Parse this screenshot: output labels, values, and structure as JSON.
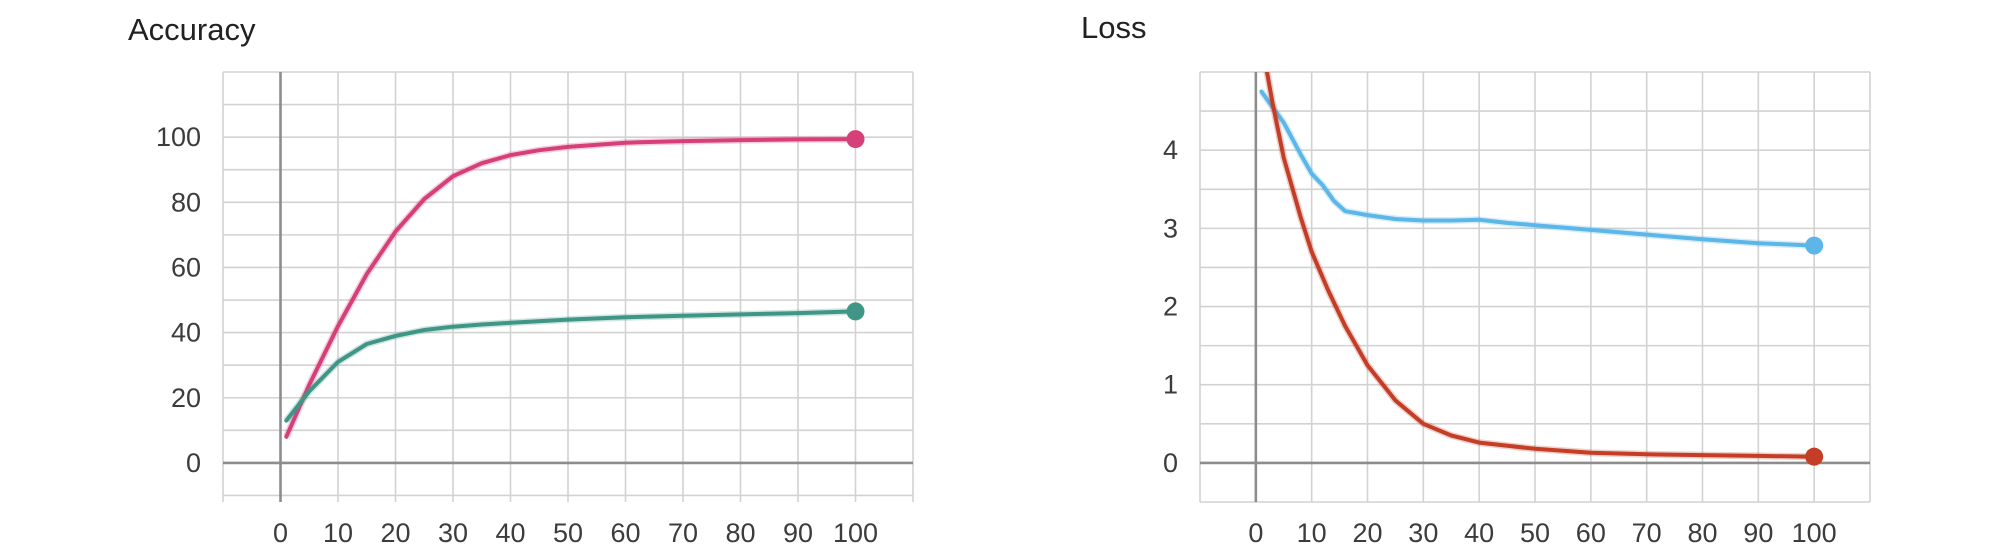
{
  "chart_data": [
    {
      "type": "line",
      "title": "Accuracy",
      "xlabel": "",
      "ylabel": "",
      "xlim": [
        -10,
        110
      ],
      "ylim": [
        -12,
        120
      ],
      "xticks": [
        0,
        10,
        20,
        30,
        40,
        50,
        60,
        70,
        80,
        90,
        100
      ],
      "yticks": [
        0,
        20,
        40,
        60,
        80,
        100
      ],
      "grid": true,
      "series": [
        {
          "color": "#d63f78",
          "smoothed": true,
          "x": [
            1,
            5,
            10,
            15,
            20,
            25,
            30,
            35,
            40,
            45,
            50,
            60,
            70,
            80,
            90,
            100
          ],
          "y": [
            8,
            24,
            42,
            58,
            71,
            81,
            88,
            92,
            94.5,
            96,
            97,
            98.3,
            98.8,
            99.1,
            99.3,
            99.4
          ]
        },
        {
          "color": "#3f9686",
          "smoothed": true,
          "x": [
            1,
            5,
            10,
            15,
            20,
            25,
            30,
            35,
            40,
            50,
            60,
            70,
            80,
            90,
            100
          ],
          "y": [
            13,
            22,
            31,
            36.5,
            39,
            40.8,
            41.8,
            42.5,
            43,
            44,
            44.7,
            45.2,
            45.6,
            46,
            46.5
          ]
        }
      ]
    },
    {
      "type": "line",
      "title": "Loss",
      "xlabel": "",
      "ylabel": "",
      "xlim": [
        -10,
        110
      ],
      "ylim": [
        -0.5,
        5
      ],
      "xticks": [
        0,
        10,
        20,
        30,
        40,
        50,
        60,
        70,
        80,
        90,
        100
      ],
      "yticks": [
        0,
        1,
        2,
        3,
        4
      ],
      "grid": true,
      "series": [
        {
          "color": "#5cb6e8",
          "smoothed": true,
          "x": [
            1,
            3,
            5,
            8,
            10,
            12,
            14,
            16,
            20,
            25,
            30,
            35,
            40,
            45,
            50,
            60,
            70,
            80,
            90,
            100
          ],
          "y": [
            4.75,
            4.55,
            4.35,
            3.95,
            3.7,
            3.55,
            3.35,
            3.22,
            3.17,
            3.12,
            3.1,
            3.1,
            3.11,
            3.07,
            3.04,
            2.98,
            2.92,
            2.86,
            2.81,
            2.78
          ]
        },
        {
          "color": "#c43e27",
          "smoothed": true,
          "x": [
            1.5,
            3,
            5,
            8,
            10,
            13,
            16,
            20,
            25,
            30,
            35,
            40,
            50,
            60,
            70,
            80,
            90,
            100
          ],
          "y": [
            5.2,
            4.6,
            3.9,
            3.15,
            2.7,
            2.2,
            1.75,
            1.25,
            0.8,
            0.5,
            0.35,
            0.26,
            0.18,
            0.13,
            0.11,
            0.1,
            0.09,
            0.08
          ]
        }
      ]
    }
  ]
}
